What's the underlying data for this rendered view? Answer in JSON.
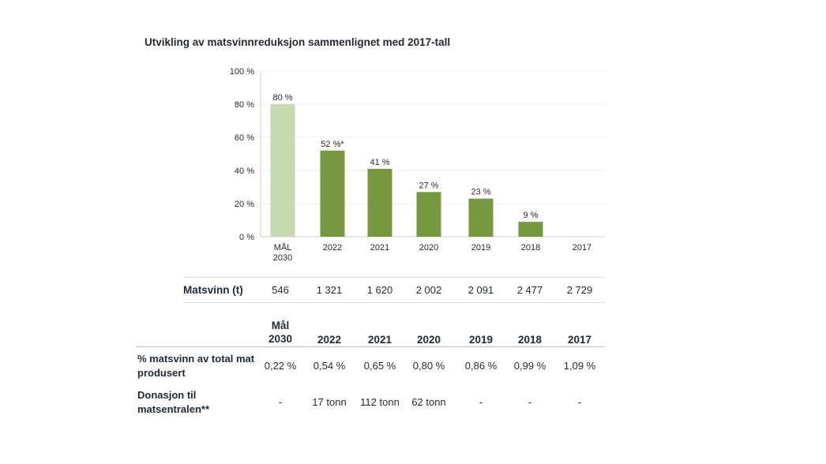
{
  "title": "Utvikling av matsvinnreduksjon sammenlignet med 2017-tall",
  "chart_data": {
    "type": "bar",
    "categories": [
      "MÅL\n2030",
      "2022",
      "2021",
      "2020",
      "2019",
      "2018",
      "2017"
    ],
    "values": [
      80,
      52,
      41,
      27,
      23,
      9,
      0
    ],
    "data_labels": [
      "80 %",
      "52 %*",
      "41 %",
      "27 %",
      "23 %",
      "9 %",
      ""
    ],
    "bar_colors": [
      "#c7d9b1",
      "#76993f",
      "#76993f",
      "#76993f",
      "#76993f",
      "#76993f",
      "#76993f"
    ],
    "ylim": [
      0,
      100
    ],
    "yticks": [
      0,
      20,
      40,
      60,
      80,
      100
    ],
    "ytick_labels": [
      "0 %",
      "20 %",
      "40 %",
      "60 %",
      "80 %",
      "100 %"
    ],
    "grid": true,
    "xlabel": "",
    "ylabel": ""
  },
  "matsvinn_row": {
    "label": "Matsvinn (t)",
    "values": [
      "546",
      "1 321",
      "1 620",
      "2 002",
      "2 091",
      "2 477",
      "2 729"
    ]
  },
  "table": {
    "headers": [
      "Mål\n2030",
      "2022",
      "2021",
      "2020",
      "2019",
      "2018",
      "2017"
    ],
    "rows": [
      {
        "label": "% matsvinn av total mat produsert",
        "values": [
          "0,22 %",
          "0,54 %",
          "0,65 %",
          "0,80 %",
          "0,86 %",
          "0,99 %",
          "1,09 %"
        ]
      },
      {
        "label": "Donasjon til matsentralen**",
        "values": [
          "-",
          "17 tonn",
          "112 tonn",
          "62 tonn",
          "-",
          "-",
          "-"
        ]
      }
    ]
  }
}
